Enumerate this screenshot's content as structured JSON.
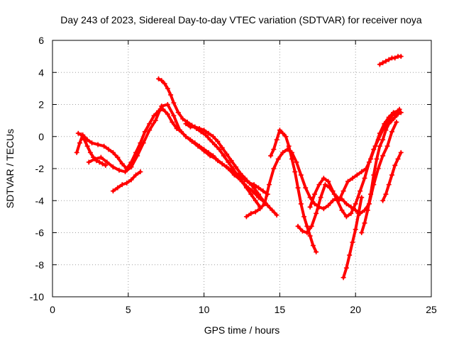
{
  "chart_data": {
    "type": "scatter",
    "title": "Day 243 of 2023, Sidereal Day-to-day VTEC variation (SDTVAR) for receiver noya",
    "xlabel": "GPS time / hours",
    "ylabel": "SDTVAR / TECUs",
    "xlim": [
      0,
      25
    ],
    "ylim": [
      -10,
      6
    ],
    "xticks": [
      0,
      5,
      10,
      15,
      20,
      25
    ],
    "yticks": [
      -10,
      -8,
      -6,
      -4,
      -2,
      0,
      2,
      4,
      6
    ],
    "grid": true,
    "marker": "+",
    "colors": {
      "series": "#ff0000",
      "grid": "#a0a0a0",
      "axis": "#000000"
    },
    "series": [
      {
        "name": "trace-1",
        "x": [
          1.6,
          1.8,
          2.0,
          2.3,
          2.6,
          3.0,
          3.4,
          3.7,
          4.0,
          4.3,
          4.6,
          4.9,
          5.2,
          5.5,
          5.8,
          6.1,
          6.4,
          6.7,
          7.0,
          7.3,
          7.6,
          7.9,
          8.2,
          8.5,
          8.8,
          9.1,
          9.4,
          9.7,
          10.0,
          10.3,
          10.6,
          10.9,
          11.2,
          11.5,
          11.8,
          12.1,
          12.4,
          12.7,
          13.0,
          13.3,
          13.6,
          13.9,
          14.2
        ],
        "y": [
          -1.0,
          -0.4,
          0.1,
          -0.2,
          -0.4,
          -0.5,
          -0.6,
          -0.8,
          -1.0,
          -1.3,
          -1.7,
          -2.0,
          -1.6,
          -1.0,
          -0.4,
          0.3,
          0.8,
          1.3,
          1.6,
          1.7,
          1.4,
          0.9,
          0.5,
          0.3,
          0.0,
          -0.2,
          -0.4,
          -0.6,
          -0.8,
          -1.0,
          -1.2,
          -1.5,
          -1.7,
          -1.9,
          -2.1,
          -2.3,
          -2.5,
          -2.7,
          -2.9,
          -3.0,
          -3.2,
          -3.4,
          -3.6
        ]
      },
      {
        "name": "trace-2",
        "x": [
          1.7,
          1.9,
          2.1,
          2.3,
          2.5,
          2.7,
          2.9,
          3.1,
          3.3,
          3.5
        ],
        "y": [
          0.2,
          0.1,
          -0.2,
          -0.6,
          -1.0,
          -1.3,
          -1.5,
          -1.6,
          -1.7,
          -1.8
        ]
      },
      {
        "name": "trace-3",
        "x": [
          4.0,
          4.3,
          4.6,
          4.9,
          5.2,
          5.5,
          5.8
        ],
        "y": [
          -3.4,
          -3.2,
          -3.0,
          -2.9,
          -2.7,
          -2.4,
          -2.2
        ]
      },
      {
        "name": "trace-4",
        "x": [
          2.4,
          2.8,
          3.2,
          3.6,
          4.0,
          4.4,
          4.8,
          5.2,
          5.6,
          6.0,
          6.4,
          6.8,
          7.2,
          7.6,
          8.0,
          8.4,
          8.8,
          9.2,
          9.6,
          10.0,
          10.4,
          10.8,
          11.2,
          11.6,
          12.0,
          12.4,
          12.8,
          13.2,
          13.6,
          14.0
        ],
        "y": [
          -1.6,
          -1.4,
          -1.3,
          -1.6,
          -1.9,
          -2.1,
          -2.2,
          -1.9,
          -1.2,
          -0.4,
          0.4,
          1.0,
          1.9,
          2.0,
          1.3,
          0.4,
          0.0,
          -0.3,
          -0.6,
          -0.9,
          -1.2,
          -1.4,
          -1.7,
          -2.0,
          -2.4,
          -2.7,
          -3.1,
          -3.4,
          -3.8,
          -4.1
        ]
      },
      {
        "name": "trace-5",
        "x": [
          7.0,
          7.2,
          7.4,
          7.6,
          7.8,
          8.0,
          8.3,
          8.6,
          8.9,
          9.2,
          9.5,
          9.8,
          10.1,
          10.4,
          10.7,
          11.0,
          11.3,
          11.6,
          11.9,
          12.2,
          12.5,
          12.8,
          13.1,
          13.4,
          13.7
        ],
        "y": [
          3.6,
          3.5,
          3.3,
          3.0,
          2.6,
          2.1,
          1.5,
          1.1,
          0.9,
          0.7,
          0.5,
          0.3,
          0.1,
          -0.2,
          -0.5,
          -0.8,
          -1.2,
          -1.6,
          -2.0,
          -2.4,
          -2.8,
          -3.2,
          -3.6,
          -4.0,
          -4.4
        ]
      },
      {
        "name": "trace-6",
        "x": [
          8.8,
          9.1,
          9.4,
          9.7,
          10.0,
          10.3,
          10.6,
          10.9,
          11.2,
          11.5,
          11.8,
          12.1,
          12.4,
          12.7,
          13.0,
          13.3,
          13.6,
          13.9,
          14.2,
          14.5,
          14.8
        ],
        "y": [
          0.8,
          0.6,
          0.6,
          0.5,
          0.4,
          0.2,
          0.0,
          -0.3,
          -0.7,
          -1.1,
          -1.5,
          -1.9,
          -2.3,
          -2.6,
          -2.9,
          -3.2,
          -3.6,
          -4.0,
          -4.3,
          -4.6,
          -4.9
        ]
      },
      {
        "name": "trace-7",
        "x": [
          12.8,
          13.1,
          13.4,
          13.7,
          14.0,
          14.3,
          14.6,
          14.9,
          15.2,
          15.5,
          15.8,
          16.1,
          16.4,
          16.7,
          17.0,
          17.3,
          17.6,
          17.9,
          18.2,
          18.5,
          18.8,
          19.1,
          19.4,
          19.7,
          20.0,
          20.3,
          20.6,
          20.9,
          21.2,
          21.5,
          21.8,
          22.1,
          22.4,
          22.7
        ],
        "y": [
          -5.0,
          -4.8,
          -4.7,
          -4.5,
          -4.2,
          -3.0,
          -2.0,
          -1.4,
          -1.0,
          -0.8,
          -1.0,
          -1.6,
          -2.4,
          -3.2,
          -3.8,
          -4.2,
          -4.4,
          -4.5,
          -4.3,
          -4.0,
          -3.8,
          -3.9,
          -4.2,
          -4.4,
          -4.6,
          -4.8,
          -4.6,
          -4.2,
          -3.0,
          -2.0,
          -1.2,
          -0.6,
          0.3,
          0.9
        ]
      },
      {
        "name": "trace-8",
        "x": [
          14.4,
          14.6,
          14.8,
          15.0,
          15.2,
          15.4,
          15.6,
          15.8,
          16.0,
          16.2,
          16.4,
          16.6,
          16.8,
          17.0,
          17.2,
          17.4
        ],
        "y": [
          -1.2,
          -0.8,
          -0.2,
          0.4,
          0.2,
          0.0,
          -0.6,
          -1.4,
          -2.2,
          -3.2,
          -4.2,
          -5.0,
          -5.6,
          -6.2,
          -6.8,
          -7.2
        ]
      },
      {
        "name": "trace-9",
        "x": [
          16.2,
          16.5,
          16.8,
          17.1,
          17.4,
          17.7,
          18.0,
          18.3,
          18.6,
          18.9,
          19.2,
          19.5,
          19.8,
          20.1,
          20.4,
          20.7,
          21.0,
          21.3,
          21.6,
          21.9,
          22.2,
          22.5,
          22.8
        ],
        "y": [
          -5.6,
          -5.9,
          -6.0,
          -5.6,
          -4.8,
          -3.8,
          -3.0,
          -3.2,
          -3.6,
          -4.0,
          -3.4,
          -2.8,
          -2.6,
          -2.4,
          -2.2,
          -2.0,
          -1.4,
          -0.6,
          0.2,
          0.8,
          1.2,
          1.5,
          1.6
        ]
      },
      {
        "name": "trace-10",
        "x": [
          17.0,
          17.3,
          17.6,
          17.9,
          18.2,
          18.5,
          18.8,
          19.1,
          19.4,
          19.7,
          20.0,
          20.3,
          20.6,
          20.9,
          21.2,
          21.5,
          21.8,
          22.1,
          22.4,
          22.7,
          22.9
        ],
        "y": [
          -4.4,
          -3.6,
          -3.0,
          -2.6,
          -2.8,
          -3.4,
          -4.0,
          -4.6,
          -5.0,
          -4.8,
          -4.2,
          -3.4,
          -2.6,
          -1.6,
          -0.8,
          -0.2,
          0.4,
          0.9,
          1.3,
          1.5,
          1.7
        ]
      },
      {
        "name": "trace-11",
        "x": [
          19.2,
          19.4,
          19.6,
          19.8,
          20.0,
          20.2,
          20.4
        ],
        "y": [
          -8.8,
          -8.2,
          -7.4,
          -6.6,
          -5.8,
          -4.8,
          -3.8
        ]
      },
      {
        "name": "trace-12",
        "x": [
          20.4,
          20.6,
          20.8,
          21.0,
          21.2,
          21.4,
          21.6,
          21.8,
          22.0,
          22.2,
          22.4,
          22.6,
          22.8,
          23.0
        ],
        "y": [
          -6.0,
          -5.4,
          -4.6,
          -3.6,
          -2.4,
          -1.4,
          -0.6,
          -0.2,
          0.4,
          0.8,
          1.0,
          1.2,
          1.4,
          1.5
        ]
      },
      {
        "name": "trace-13",
        "x": [
          21.8,
          22.0,
          22.2,
          22.4,
          22.6,
          22.8,
          23.0
        ],
        "y": [
          -4.0,
          -3.6,
          -3.0,
          -2.4,
          -1.8,
          -1.4,
          -1.0
        ]
      },
      {
        "name": "trace-14",
        "x": [
          21.6,
          21.8,
          22.0,
          22.2,
          22.4,
          22.6,
          22.8,
          23.0
        ],
        "y": [
          4.5,
          4.6,
          4.7,
          4.8,
          4.9,
          4.9,
          5.0,
          5.0
        ]
      }
    ]
  }
}
